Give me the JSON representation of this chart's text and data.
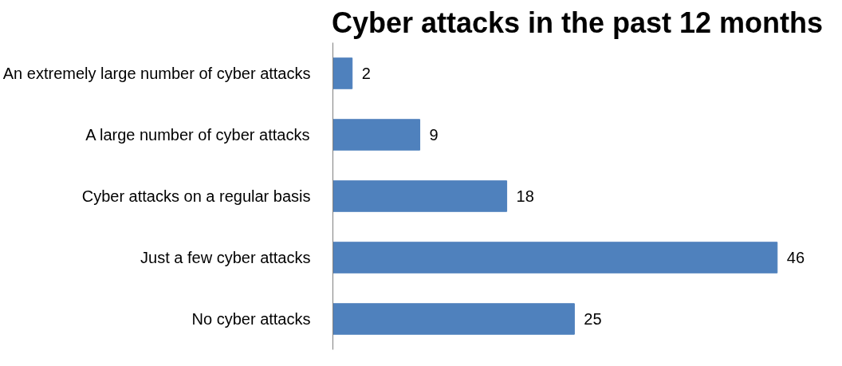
{
  "chart_data": {
    "type": "bar",
    "orientation": "horizontal",
    "title": "Cyber attacks in the past 12 months",
    "categories": [
      "An extremely large number of cyber attacks",
      "A large number of cyber attacks",
      "Cyber attacks on a regular basis",
      "Just a few cyber attacks",
      "No cyber attacks"
    ],
    "values": [
      2,
      9,
      18,
      46,
      25
    ],
    "color": "#4f81bd",
    "data_labels": true
  }
}
